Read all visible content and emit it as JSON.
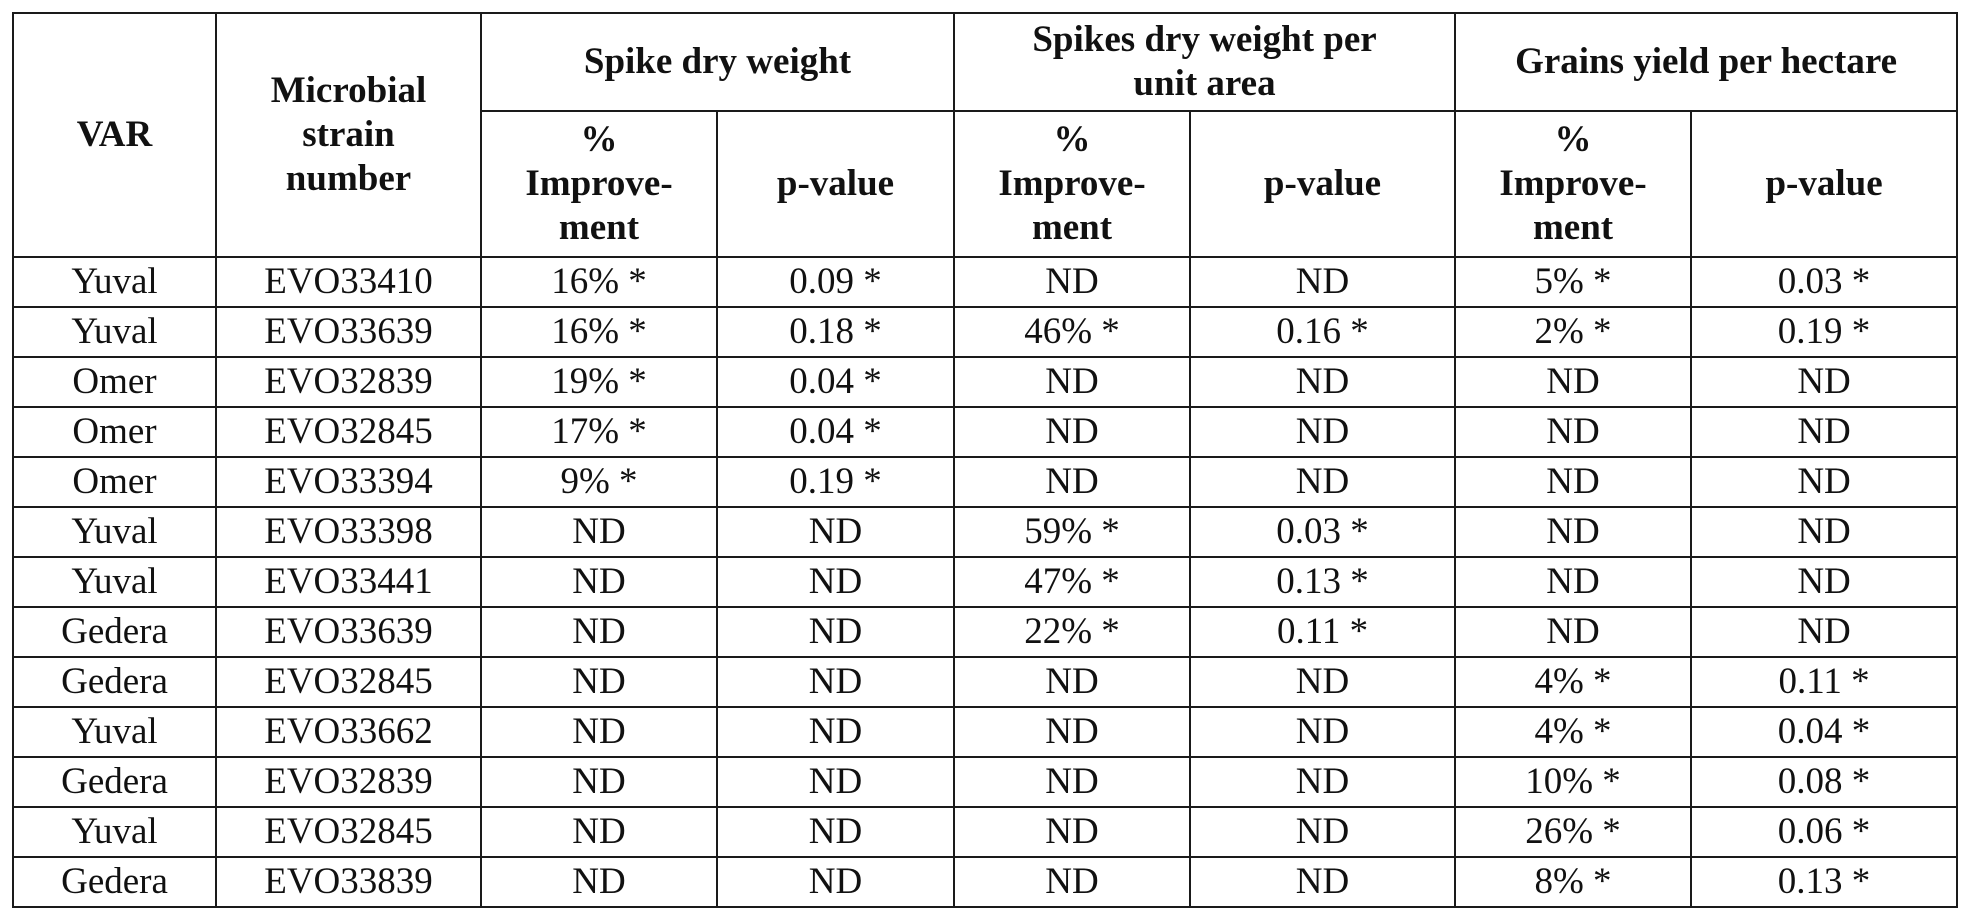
{
  "table": {
    "headers": {
      "var": "VAR",
      "strain": [
        "Microbial",
        "strain",
        "number"
      ],
      "groups": [
        {
          "title": [
            "Spike dry weight"
          ]
        },
        {
          "title": [
            "Spikes dry weight per",
            "unit area"
          ]
        },
        {
          "title": [
            "Grains yield per hectare"
          ]
        }
      ],
      "improvement": [
        "%",
        "Improve-",
        "ment"
      ],
      "pvalue": "p-value"
    },
    "rows": [
      [
        "Yuval",
        "EVO33410",
        "16% *",
        "0.09 *",
        "ND",
        "ND",
        "5% *",
        "0.03 *"
      ],
      [
        "Yuval",
        "EVO33639",
        "16% *",
        "0.18 *",
        "46% *",
        "0.16 *",
        "2% *",
        "0.19 *"
      ],
      [
        "Omer",
        "EVO32839",
        "19% *",
        "0.04 *",
        "ND",
        "ND",
        "ND",
        "ND"
      ],
      [
        "Omer",
        "EVO32845",
        "17% *",
        "0.04 *",
        "ND",
        "ND",
        "ND",
        "ND"
      ],
      [
        "Omer",
        "EVO33394",
        "9% *",
        "0.19 *",
        "ND",
        "ND",
        "ND",
        "ND"
      ],
      [
        "Yuval",
        "EVO33398",
        "ND",
        "ND",
        "59% *",
        "0.03 *",
        "ND",
        "ND"
      ],
      [
        "Yuval",
        "EVO33441",
        "ND",
        "ND",
        "47% *",
        "0.13 *",
        "ND",
        "ND"
      ],
      [
        "Gedera",
        "EVO33639",
        "ND",
        "ND",
        "22% *",
        "0.11 *",
        "ND",
        "ND"
      ],
      [
        "Gedera",
        "EVO32845",
        "ND",
        "ND",
        "ND",
        "ND",
        "4% *",
        "0.11 *"
      ],
      [
        "Yuval",
        "EVO33662",
        "ND",
        "ND",
        "ND",
        "ND",
        "4% *",
        "0.04 *"
      ],
      [
        "Gedera",
        "EVO32839",
        "ND",
        "ND",
        "ND",
        "ND",
        "10% *",
        "0.08 *"
      ],
      [
        "Yuval",
        "EVO32845",
        "ND",
        "ND",
        "ND",
        "ND",
        "26% *",
        "0.06 *"
      ],
      [
        "Gedera",
        "EVO33839",
        "ND",
        "ND",
        "ND",
        "ND",
        "8% *",
        "0.13 *"
      ]
    ]
  }
}
